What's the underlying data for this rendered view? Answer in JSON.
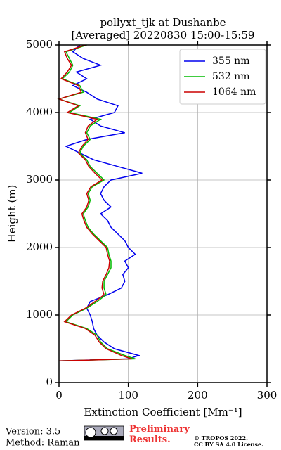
{
  "chart_data": {
    "type": "profile",
    "title": [
      "pollyxt_tjk at Dushanbe",
      "[Averaged] 20220830 15:00-15:59"
    ],
    "xlabel": "Extinction Coefficient [Mm⁻¹]",
    "ylabel": "Height (m)",
    "y": [
      320,
      350,
      400,
      500,
      600,
      700,
      800,
      900,
      1000,
      1100,
      1200,
      1300,
      1400,
      1500,
      1600,
      1700,
      1800,
      1900,
      2000,
      2100,
      2200,
      2300,
      2400,
      2500,
      2600,
      2700,
      2800,
      2900,
      3000,
      3100,
      3200,
      3300,
      3400,
      3500,
      3600,
      3700,
      3800,
      3900,
      4000,
      4100,
      4200,
      4300,
      4400,
      4500,
      4600,
      4700,
      4800,
      4900,
      5000
    ],
    "series": [
      {
        "name": "355 nm",
        "color": "#0000ee",
        "values": [
          0,
          100,
          115,
          80,
          65,
          55,
          50,
          48,
          45,
          40,
          45,
          70,
          90,
          95,
          92,
          100,
          95,
          110,
          100,
          95,
          85,
          75,
          70,
          60,
          75,
          65,
          60,
          65,
          75,
          120,
          85,
          50,
          30,
          10,
          40,
          95,
          60,
          45,
          80,
          85,
          55,
          40,
          20,
          40,
          25,
          60,
          35,
          20,
          30
        ]
      },
      {
        "name": "532 nm",
        "color": "#00bb00",
        "values": [
          0,
          110,
          95,
          70,
          60,
          55,
          40,
          10,
          20,
          40,
          55,
          68,
          65,
          65,
          70,
          75,
          75,
          72,
          70,
          60,
          50,
          42,
          38,
          35,
          42,
          45,
          42,
          48,
          65,
          55,
          45,
          40,
          30,
          35,
          45,
          40,
          45,
          60,
          15,
          30,
          0,
          35,
          30,
          5,
          15,
          20,
          15,
          10,
          40
        ]
      },
      {
        "name": "1064 nm",
        "color": "#cc0000",
        "values": [
          0,
          105,
          90,
          68,
          58,
          52,
          38,
          8,
          18,
          38,
          52,
          65,
          62,
          63,
          68,
          72,
          73,
          70,
          68,
          58,
          48,
          40,
          36,
          33,
          40,
          43,
          40,
          46,
          62,
          52,
          43,
          38,
          28,
          33,
          42,
          38,
          42,
          55,
          12,
          28,
          0,
          32,
          28,
          3,
          12,
          18,
          12,
          8,
          38
        ]
      }
    ],
    "xlim": [
      0,
      300
    ],
    "xticks": [
      0,
      100,
      200,
      300
    ],
    "ylim": [
      0,
      5000
    ],
    "yticks": [
      0,
      1000,
      2000,
      3000,
      4000,
      5000
    ],
    "grid": true,
    "legend": "upper right"
  },
  "footer": {
    "version": "Version: 3.5",
    "method": "Method: Raman",
    "preliminary": "Preliminary Results.",
    "copyright": [
      "© TROPOS 2022.",
      "CC BY SA 4.0 License."
    ]
  }
}
